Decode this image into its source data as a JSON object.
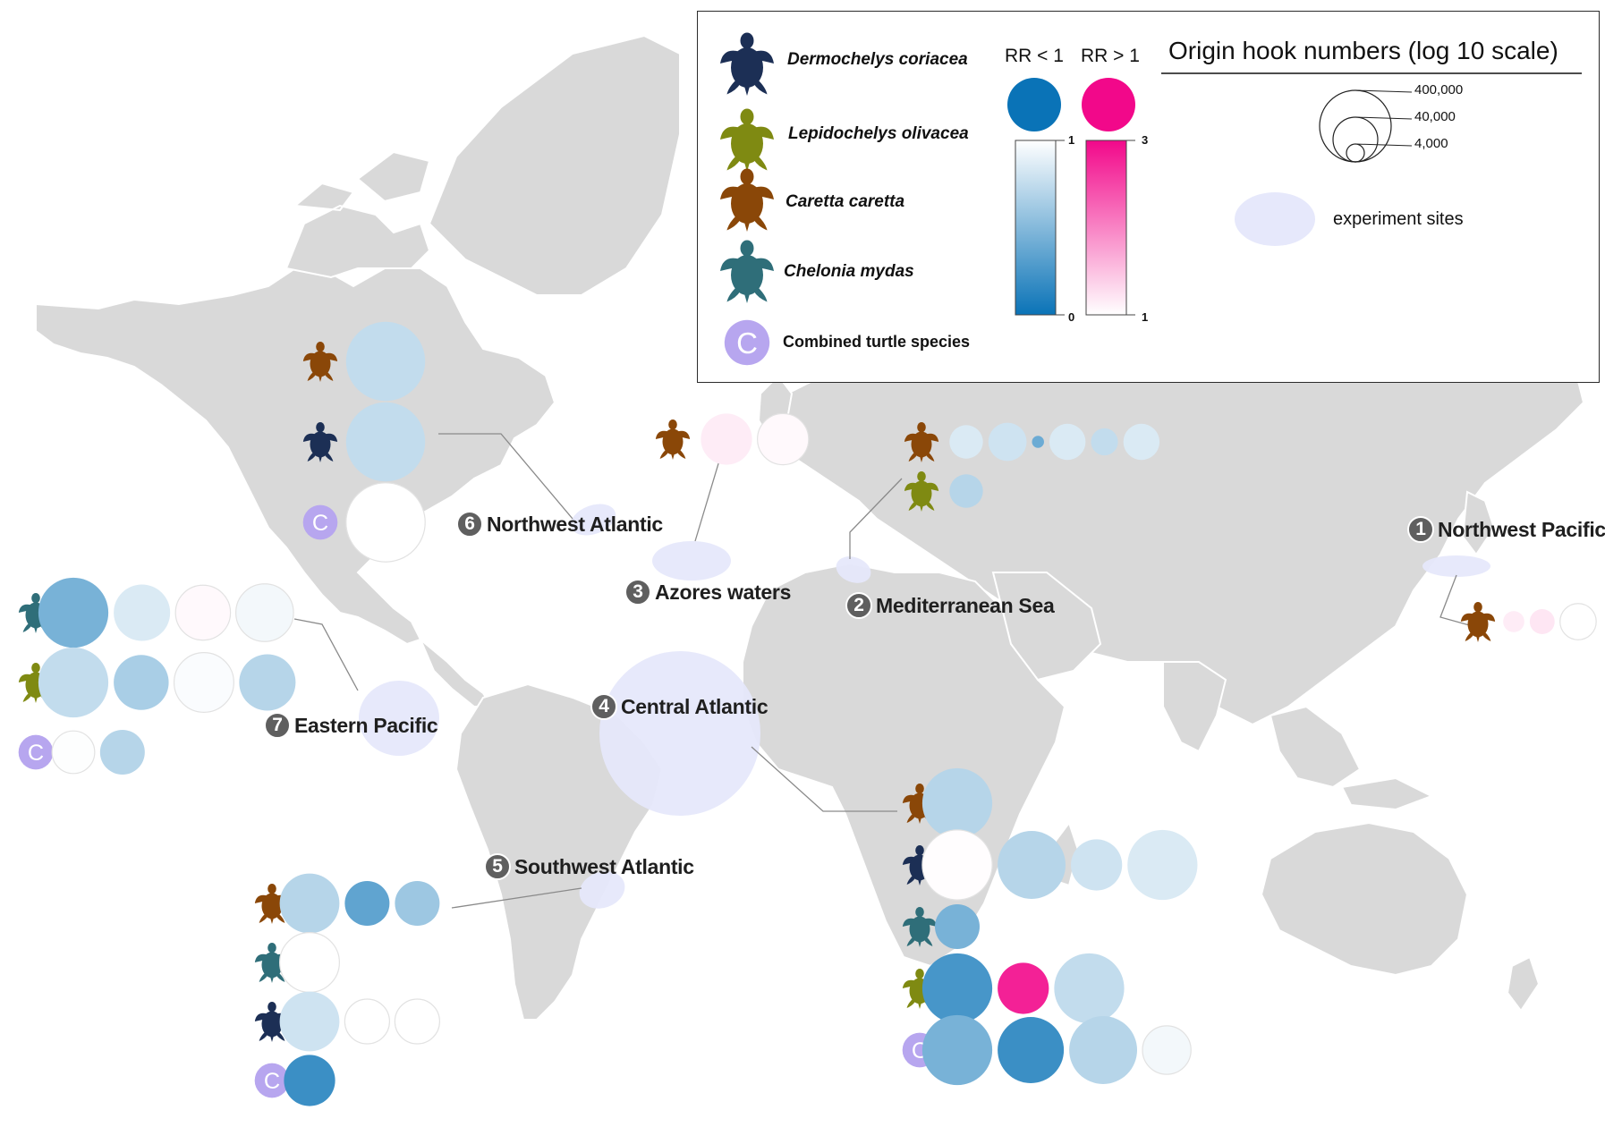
{
  "colors": {
    "land": "#d9d9d9",
    "site": "#e6e8fb",
    "rr_low": "#0a73b7",
    "rr_high": "#f2088a",
    "combined": "#b7a6ef",
    "dermochelys": "#1c2f55",
    "lepidochelys": "#7f8a12",
    "caretta": "#8a4708",
    "chelonia": "#2f6e79"
  },
  "legend": {
    "species": [
      {
        "key": "dermochelys",
        "label": "Dermochelys coriacea"
      },
      {
        "key": "lepidochelys",
        "label": "Lepidochelys olivacea"
      },
      {
        "key": "caretta",
        "label": "Caretta caretta"
      },
      {
        "key": "chelonia",
        "label": "Chelonia mydas"
      }
    ],
    "combined_label": "Combined turtle species",
    "combined_symbol": "C",
    "rr_low_label": "RR < 1",
    "rr_high_label": "RR > 1",
    "scale_low_top": "1",
    "scale_low_bottom": "0",
    "scale_high_top": "3",
    "scale_high_bottom": "1",
    "size_title": "Origin hook numbers (log 10 scale)",
    "size_values": [
      "400,000",
      "40,000",
      "4,000"
    ],
    "site_label": "experiment sites"
  },
  "sites": [
    {
      "num": "1",
      "name": "Northwest Pacific"
    },
    {
      "num": "2",
      "name": "Mediterranean Sea"
    },
    {
      "num": "3",
      "name": "Azores waters"
    },
    {
      "num": "4",
      "name": "Central Atlantic"
    },
    {
      "num": "5",
      "name": "Southwest Atlantic"
    },
    {
      "num": "6",
      "name": "Northwest Atlantic"
    },
    {
      "num": "7",
      "name": "Eastern Pacific"
    }
  ],
  "groups": [
    {
      "site": "6",
      "rows": [
        {
          "species": "caretta",
          "circles": [
            {
              "rr": 0.75,
              "hooks": 400000
            }
          ]
        },
        {
          "species": "dermochelys",
          "circles": [
            {
              "rr": 0.75,
              "hooks": 400000
            }
          ]
        },
        {
          "species": "combined",
          "circles": [
            {
              "rr": 1.0,
              "hooks": 400000
            }
          ]
        }
      ]
    },
    {
      "site": "3",
      "rows": [
        {
          "species": "caretta",
          "circles": [
            {
              "rr": 1.15,
              "hooks": 20000
            },
            {
              "rr": 1.05,
              "hooks": 20000
            }
          ]
        }
      ]
    },
    {
      "site": "2",
      "rows": [
        {
          "species": "caretta",
          "circles": [
            {
              "rr": 0.85,
              "hooks": 3000
            },
            {
              "rr": 0.8,
              "hooks": 5000
            },
            {
              "rr": 0.4,
              "hooks": 300
            },
            {
              "rr": 0.85,
              "hooks": 4000
            },
            {
              "rr": 0.75,
              "hooks": 1500
            },
            {
              "rr": 0.85,
              "hooks": 4000
            }
          ]
        },
        {
          "species": "lepidochelys",
          "circles": [
            {
              "rr": 0.7,
              "hooks": 3000
            }
          ]
        }
      ]
    },
    {
      "site": "1",
      "rows": [
        {
          "species": "caretta",
          "circles": [
            {
              "rr": 1.15,
              "hooks": 800
            },
            {
              "rr": 1.2,
              "hooks": 1200
            },
            {
              "rr": 1.0,
              "hooks": 4000
            }
          ]
        }
      ]
    },
    {
      "site": "7",
      "rows": [
        {
          "species": "chelonia",
          "circles": [
            {
              "rr": 0.45,
              "hooks": 150000
            },
            {
              "rr": 0.85,
              "hooks": 35000
            },
            {
              "rr": 1.05,
              "hooks": 30000
            },
            {
              "rr": 0.95,
              "hooks": 40000
            }
          ]
        },
        {
          "species": "lepidochelys",
          "circles": [
            {
              "rr": 0.75,
              "hooks": 150000
            },
            {
              "rr": 0.65,
              "hooks": 30000
            },
            {
              "rr": 0.98,
              "hooks": 50000
            },
            {
              "rr": 0.7,
              "hooks": 35000
            }
          ]
        },
        {
          "species": "combined",
          "circles": [
            {
              "rr": 0.99,
              "hooks": 8000
            },
            {
              "rr": 0.7,
              "hooks": 10000
            }
          ]
        }
      ]
    },
    {
      "site": "5",
      "rows": [
        {
          "species": "caretta",
          "circles": [
            {
              "rr": 0.7,
              "hooks": 50000
            },
            {
              "rr": 0.35,
              "hooks": 10000
            },
            {
              "rr": 0.6,
              "hooks": 10000
            }
          ]
        },
        {
          "species": "chelonia",
          "circles": [
            {
              "rr": 1.0,
              "hooks": 50000
            }
          ]
        },
        {
          "species": "dermochelys",
          "circles": [
            {
              "rr": 0.8,
              "hooks": 50000
            },
            {
              "rr": 1.0,
              "hooks": 10000
            },
            {
              "rr": 1.0,
              "hooks": 10000
            }
          ]
        },
        {
          "species": "combined",
          "circles": [
            {
              "rr": 0.2,
              "hooks": 20000
            }
          ]
        }
      ]
    },
    {
      "site": "4",
      "rows": [
        {
          "species": "caretta",
          "circles": [
            {
              "rr": 0.7,
              "hooks": 150000
            }
          ]
        },
        {
          "species": "dermochelys",
          "circles": [
            {
              "rr": 1.02,
              "hooks": 150000
            },
            {
              "rr": 0.7,
              "hooks": 120000
            },
            {
              "rr": 0.8,
              "hooks": 20000
            },
            {
              "rr": 0.85,
              "hooks": 150000
            }
          ]
        },
        {
          "species": "chelonia",
          "circles": [
            {
              "rr": 0.45,
              "hooks": 10000
            }
          ]
        },
        {
          "species": "lepidochelys",
          "circles": [
            {
              "rr": 0.25,
              "hooks": 150000
            },
            {
              "rr": 2.8,
              "hooks": 20000
            },
            {
              "rr": 0.75,
              "hooks": 150000
            }
          ]
        },
        {
          "species": "combined",
          "circles": [
            {
              "rr": 0.45,
              "hooks": 150000
            },
            {
              "rr": 0.2,
              "hooks": 100000
            },
            {
              "rr": 0.7,
              "hooks": 120000
            },
            {
              "rr": 0.95,
              "hooks": 15000
            }
          ]
        }
      ]
    }
  ]
}
